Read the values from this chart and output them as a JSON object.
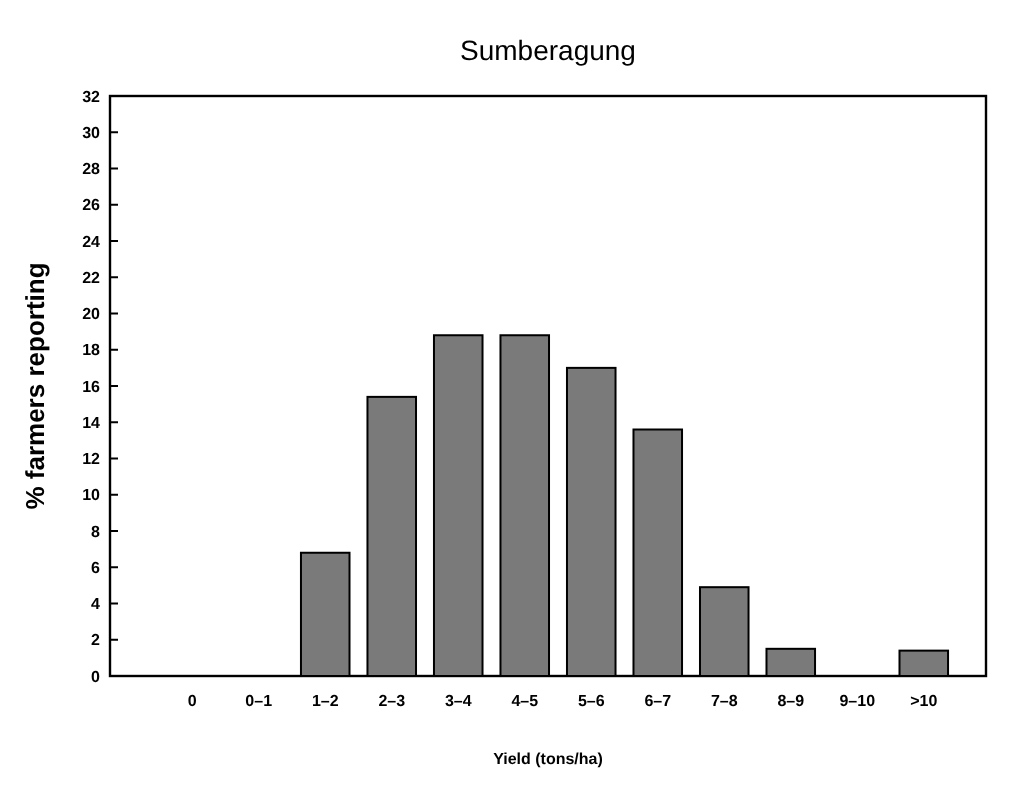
{
  "chart_data": {
    "type": "bar",
    "title": "Sumberagung",
    "xlabel": "Yield (tons/ha)",
    "ylabel": "% farmers reporting",
    "categories": [
      "0",
      "0–1",
      "1–2",
      "2–3",
      "3–4",
      "4–5",
      "5–6",
      "6–7",
      "7–8",
      "8–9",
      "9–10",
      ">10"
    ],
    "values": [
      0,
      0,
      6.8,
      15.4,
      18.8,
      18.8,
      17.0,
      13.6,
      4.9,
      1.5,
      0,
      1.4
    ],
    "color": "#7a7a7a",
    "ylim": [
      0,
      32
    ],
    "yticks": [
      0,
      2,
      4,
      6,
      8,
      10,
      12,
      14,
      16,
      18,
      20,
      22,
      24,
      26,
      28,
      30,
      32
    ],
    "grid": false
  }
}
